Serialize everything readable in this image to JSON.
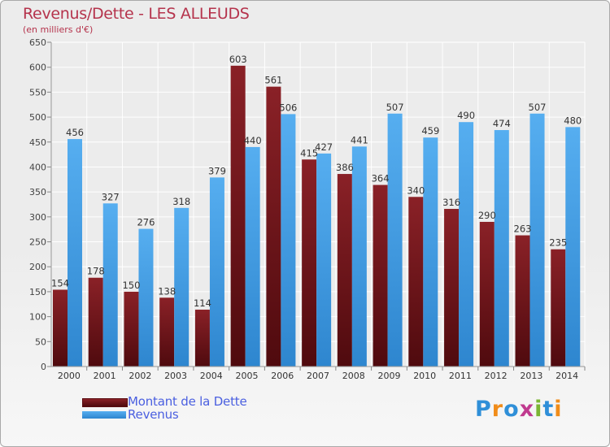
{
  "title": "Revenus/Dette - LES ALLEUDS",
  "subtitle": "(en milliers d'€)",
  "colors": {
    "debt": "#7a1a1f",
    "revenue": "#3d9be6",
    "title": "#b5334c",
    "legend_text": "#4a5fe0"
  },
  "legend": {
    "debt_label": "Montant de la Dette",
    "revenue_label": "Revenus"
  },
  "logo": {
    "text": "Proxiti"
  },
  "chart_data": {
    "type": "bar",
    "categories": [
      "2000",
      "2001",
      "2002",
      "2003",
      "2004",
      "2005",
      "2006",
      "2007",
      "2008",
      "2009",
      "2010",
      "2011",
      "2012",
      "2013",
      "2014"
    ],
    "series": [
      {
        "name": "Montant de la Dette",
        "values": [
          154,
          178,
          150,
          138,
          114,
          603,
          561,
          415,
          386,
          364,
          340,
          316,
          290,
          263,
          235
        ]
      },
      {
        "name": "Revenus",
        "values": [
          456,
          327,
          276,
          318,
          379,
          440,
          506,
          427,
          441,
          507,
          459,
          490,
          474,
          507,
          480
        ]
      }
    ],
    "yticks": [
      0,
      50,
      100,
      150,
      200,
      250,
      300,
      350,
      400,
      450,
      500,
      550,
      600,
      650
    ],
    "ylim": [
      0,
      650
    ],
    "grid": true,
    "legend_position": "bottom-left"
  }
}
